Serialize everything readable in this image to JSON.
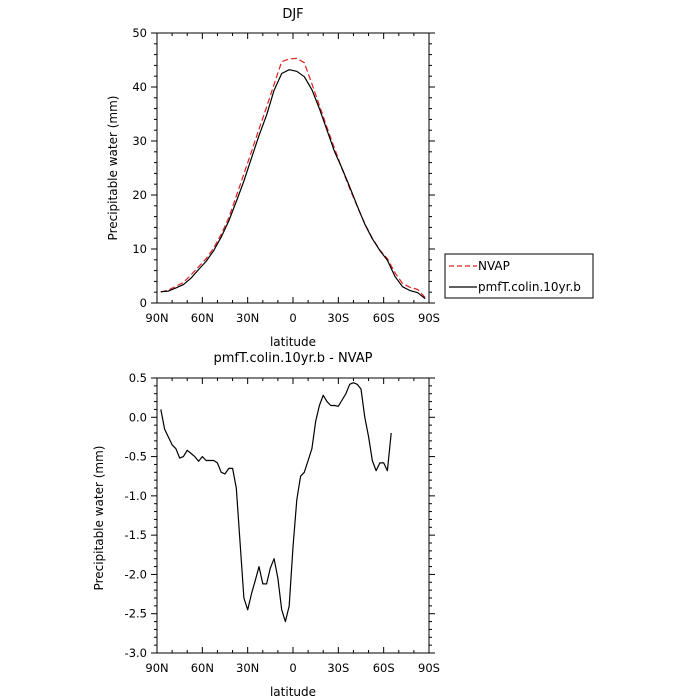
{
  "chart_data": [
    {
      "type": "line",
      "title": "DJF",
      "xlabel": "latitude",
      "ylabel": "Precipitable water (mm)",
      "xlim": [
        -90,
        90
      ],
      "ylim": [
        0,
        50
      ],
      "x_ticks": [
        {
          "value": -90,
          "label": "90N"
        },
        {
          "value": -60,
          "label": "60N"
        },
        {
          "value": -30,
          "label": "30N"
        },
        {
          "value": 0,
          "label": "0"
        },
        {
          "value": 30,
          "label": "30S"
        },
        {
          "value": 60,
          "label": "60S"
        },
        {
          "value": 90,
          "label": "90S"
        }
      ],
      "y_ticks": [
        {
          "value": 0,
          "label": "0"
        },
        {
          "value": 10,
          "label": "10"
        },
        {
          "value": 20,
          "label": "20"
        },
        {
          "value": 30,
          "label": "30"
        },
        {
          "value": 40,
          "label": "40"
        },
        {
          "value": 50,
          "label": "50"
        }
      ],
      "legend": "outside-right",
      "series": [
        {
          "name": "NVAP",
          "color": "#e02020",
          "dash": true,
          "points": [
            [
              -87.5,
              2.0
            ],
            [
              -82.5,
              2.4
            ],
            [
              -77.5,
              3.1
            ],
            [
              -72.5,
              3.8
            ],
            [
              -67.5,
              5.2
            ],
            [
              -62.5,
              6.7
            ],
            [
              -57.5,
              8.2
            ],
            [
              -52.5,
              10.2
            ],
            [
              -47.5,
              12.7
            ],
            [
              -42.5,
              15.8
            ],
            [
              -37.5,
              19.8
            ],
            [
              -32.5,
              23.9
            ],
            [
              -27.5,
              28.0
            ],
            [
              -22.5,
              32.2
            ],
            [
              -17.5,
              36.3
            ],
            [
              -12.5,
              40.5
            ],
            [
              -7.5,
              44.7
            ],
            [
              -2.5,
              45.2
            ],
            [
              2.5,
              45.3
            ],
            [
              7.5,
              44.5
            ],
            [
              12.5,
              40.6
            ],
            [
              17.5,
              36.6
            ],
            [
              22.5,
              32.5
            ],
            [
              27.5,
              28.6
            ],
            [
              32.5,
              24.8
            ],
            [
              37.5,
              21.2
            ],
            [
              42.5,
              17.9
            ],
            [
              47.5,
              14.7
            ],
            [
              52.5,
              12.0
            ],
            [
              57.5,
              9.8
            ],
            [
              62.5,
              8.2
            ],
            [
              67.5,
              5.6
            ],
            [
              72.5,
              3.6
            ],
            [
              77.5,
              2.9
            ],
            [
              82.5,
              2.5
            ],
            [
              87.5,
              1.0
            ]
          ]
        },
        {
          "name": "pmfT.colin.10yr.b",
          "color": "#000000",
          "dash": false,
          "points": [
            [
              -87.5,
              2.1
            ],
            [
              -82.5,
              2.2
            ],
            [
              -77.5,
              2.8
            ],
            [
              -72.5,
              3.4
            ],
            [
              -67.5,
              4.6
            ],
            [
              -62.5,
              6.2
            ],
            [
              -57.5,
              7.7
            ],
            [
              -52.5,
              9.7
            ],
            [
              -47.5,
              12.2
            ],
            [
              -42.5,
              15.2
            ],
            [
              -37.5,
              18.8
            ],
            [
              -32.5,
              22.6
            ],
            [
              -27.5,
              26.8
            ],
            [
              -22.5,
              31.0
            ],
            [
              -17.5,
              34.8
            ],
            [
              -12.5,
              39.4
            ],
            [
              -7.5,
              42.5
            ],
            [
              -2.5,
              43.2
            ],
            [
              2.5,
              42.9
            ],
            [
              7.5,
              41.9
            ],
            [
              12.5,
              39.5
            ],
            [
              17.5,
              36.0
            ],
            [
              22.5,
              32.0
            ],
            [
              27.5,
              28.0
            ],
            [
              32.5,
              24.9
            ],
            [
              37.5,
              21.5
            ],
            [
              42.5,
              18.0
            ],
            [
              47.5,
              14.6
            ],
            [
              52.5,
              11.9
            ],
            [
              57.5,
              9.7
            ],
            [
              62.5,
              7.9
            ],
            [
              67.5,
              4.9
            ],
            [
              72.5,
              3.0
            ],
            [
              77.5,
              2.3
            ],
            [
              82.5,
              1.9
            ],
            [
              87.5,
              0.8
            ]
          ]
        }
      ]
    },
    {
      "type": "line",
      "title": "pmfT.colin.10yr.b - NVAP",
      "xlabel": "latitude",
      "ylabel": "Precipitable water (mm)",
      "xlim": [
        -90,
        90
      ],
      "ylim": [
        -3.0,
        0.5
      ],
      "x_ticks": [
        {
          "value": -90,
          "label": "90N"
        },
        {
          "value": -60,
          "label": "60N"
        },
        {
          "value": -30,
          "label": "30N"
        },
        {
          "value": 0,
          "label": "0"
        },
        {
          "value": 30,
          "label": "30S"
        },
        {
          "value": 60,
          "label": "60S"
        },
        {
          "value": 90,
          "label": "90S"
        }
      ],
      "y_ticks": [
        {
          "value": 0.5,
          "label": "0.5"
        },
        {
          "value": 0.0,
          "label": "0.0"
        },
        {
          "value": -0.5,
          "label": "-0.5"
        },
        {
          "value": -1.0,
          "label": "-1.0"
        },
        {
          "value": -1.5,
          "label": "-1.5"
        },
        {
          "value": -2.0,
          "label": "-2.0"
        },
        {
          "value": -2.5,
          "label": "-2.5"
        },
        {
          "value": -3.0,
          "label": "-3.0"
        }
      ],
      "series": [
        {
          "color": "#000000",
          "dash": false,
          "points": [
            [
              -87.5,
              0.1
            ],
            [
              -85.0,
              -0.15
            ],
            [
              -82.5,
              -0.25
            ],
            [
              -80.0,
              -0.35
            ],
            [
              -77.5,
              -0.4
            ],
            [
              -75.0,
              -0.52
            ],
            [
              -72.5,
              -0.5
            ],
            [
              -70.0,
              -0.42
            ],
            [
              -67.5,
              -0.46
            ],
            [
              -65.0,
              -0.5
            ],
            [
              -62.5,
              -0.56
            ],
            [
              -60.0,
              -0.5
            ],
            [
              -57.5,
              -0.55
            ],
            [
              -52.5,
              -0.55
            ],
            [
              -50.0,
              -0.58
            ],
            [
              -47.5,
              -0.7
            ],
            [
              -45.0,
              -0.72
            ],
            [
              -42.5,
              -0.65
            ],
            [
              -40.0,
              -0.65
            ],
            [
              -37.5,
              -0.9
            ],
            [
              -35.0,
              -1.6
            ],
            [
              -32.5,
              -2.3
            ],
            [
              -30.0,
              -2.45
            ],
            [
              -27.5,
              -2.25
            ],
            [
              -25.0,
              -2.08
            ],
            [
              -22.5,
              -1.9
            ],
            [
              -20.0,
              -2.12
            ],
            [
              -17.5,
              -2.12
            ],
            [
              -15.0,
              -1.92
            ],
            [
              -12.5,
              -1.8
            ],
            [
              -10.0,
              -2.05
            ],
            [
              -7.5,
              -2.45
            ],
            [
              -5.0,
              -2.6
            ],
            [
              -2.5,
              -2.4
            ],
            [
              0.0,
              -1.65
            ],
            [
              2.5,
              -1.05
            ],
            [
              5.0,
              -0.75
            ],
            [
              7.5,
              -0.7
            ],
            [
              10.0,
              -0.55
            ],
            [
              12.5,
              -0.4
            ],
            [
              15.0,
              -0.05
            ],
            [
              17.5,
              0.15
            ],
            [
              20.0,
              0.28
            ],
            [
              22.5,
              0.2
            ],
            [
              25.0,
              0.15
            ],
            [
              27.5,
              0.15
            ],
            [
              30.0,
              0.14
            ],
            [
              32.5,
              0.22
            ],
            [
              35.0,
              0.3
            ],
            [
              37.5,
              0.42
            ],
            [
              40.0,
              0.44
            ],
            [
              42.5,
              0.42
            ],
            [
              45.0,
              0.36
            ],
            [
              47.5,
              0.0
            ],
            [
              50.0,
              -0.25
            ],
            [
              52.5,
              -0.55
            ],
            [
              55.0,
              -0.68
            ],
            [
              57.5,
              -0.58
            ],
            [
              60.0,
              -0.58
            ],
            [
              62.5,
              -0.68
            ],
            [
              65.0,
              -0.2
            ]
          ]
        }
      ]
    }
  ]
}
